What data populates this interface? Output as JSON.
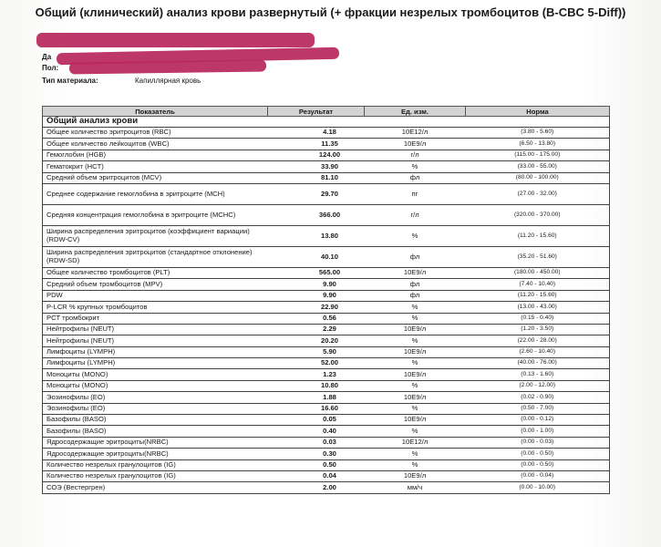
{
  "title": "Общий (клинический) анализ крови развернутый (+ фракции незрелых тромбоцитов (B-CBC 5-Diff))",
  "meta": [
    {
      "label": "Да",
      "value": ""
    },
    {
      "label": "Пол:",
      "value": ""
    },
    {
      "label": "Тип материала:",
      "value": "Капиллярная кровь"
    }
  ],
  "table": {
    "headers": {
      "indicator": "Показатель",
      "result": "Результат",
      "unit": "Ед. изм.",
      "norm": "Норма"
    },
    "section": "Общий анализ крови",
    "rows": [
      {
        "name": "Общее количество эритроцитов (RBC)",
        "result": "4.18",
        "unit": "10E12/л",
        "norm": "(3.80 - 5.60)"
      },
      {
        "name": "Общее количество лейкоцитов (WBC)",
        "result": "11.35",
        "unit": "10E9/л",
        "norm": "(6.50 - 13.80)"
      },
      {
        "name": "Гемоглобин (HGB)",
        "result": "124.00",
        "unit": "г/л",
        "norm": "(115.00 - 175.00)"
      },
      {
        "name": "Гематокрит (HCT)",
        "result": "33.90",
        "unit": "%",
        "norm": "(33.00 - 55.00)"
      },
      {
        "name": "Средний объем эритроцитов (MCV)",
        "result": "81.10",
        "unit": "фл",
        "norm": "(80.00 - 100.00)"
      },
      {
        "name": "Среднее содержание гемоглобина в эритроците (MCH)",
        "result": "29.70",
        "unit": "пг",
        "norm": "(27.00 - 32.00)"
      },
      {
        "name": "Средняя концентрация гемоглобина в эритроците (MCHC)",
        "result": "366.00",
        "unit": "г/л",
        "norm": "(320.00 - 370.00)"
      },
      {
        "name": "Ширина распределения эритроцитов (коэффициент вариации) (RDW-CV)",
        "result": "13.80",
        "unit": "%",
        "norm": "(11.20 - 15.60)"
      },
      {
        "name": "Ширина распределения эритроцитов (стандартное отклонение) (RDW-SD)",
        "result": "40.10",
        "unit": "фл",
        "norm": "(35.20 - 51.60)"
      },
      {
        "name": "Общее количество тромбоцитов (PLT)",
        "result": "565.00",
        "unit": "10E9/л",
        "norm": "(180.00 - 450.00)"
      },
      {
        "name": "Средний объем тромбоцитов (MPV)",
        "result": "9.90",
        "unit": "фл",
        "norm": "(7.40 - 10.40)"
      },
      {
        "name": "PDW",
        "result": "9.90",
        "unit": "фл",
        "norm": "(11.20 - 15.60)"
      },
      {
        "name": "P-LCR % крупных тромбоцитов",
        "result": "22.90",
        "unit": "%",
        "norm": "(13.00 - 43.00)"
      },
      {
        "name": "PCT тромбокрит",
        "result": "0.56",
        "unit": "%",
        "norm": "(0.15 - 0.40)"
      },
      {
        "name": "Нейтрофилы (NEUT)",
        "result": "2.29",
        "unit": "10E9/л",
        "norm": "(1.20 - 3.50)"
      },
      {
        "name": "Нейтрофилы (NEUT)",
        "result": "20.20",
        "unit": "%",
        "norm": "(22.00 - 28.00)"
      },
      {
        "name": "Лимфоциты (LYMPH)",
        "result": "5.90",
        "unit": "10E9/л",
        "norm": "(2.60 - 10.40)"
      },
      {
        "name": "Лимфоциты (LYMPH)",
        "result": "52.00",
        "unit": "%",
        "norm": "(40.00 - 76.00)"
      },
      {
        "name": "Моноциты (MONO)",
        "result": "1.23",
        "unit": "10E9/л",
        "norm": "(0.13 - 1.60)"
      },
      {
        "name": "Моноциты (MONO)",
        "result": "10.80",
        "unit": "%",
        "norm": "(2.00 - 12.00)"
      },
      {
        "name": "Эозинофилы (EO)",
        "result": "1.88",
        "unit": "10E9/л",
        "norm": "(0.02 - 0.90)"
      },
      {
        "name": "Эозинофилы (EO)",
        "result": "16.60",
        "unit": "%",
        "norm": "(0.50 - 7.00)"
      },
      {
        "name": "Базофилы (BASO)",
        "result": "0.05",
        "unit": "10E9/л",
        "norm": "(0.00 - 0.12)"
      },
      {
        "name": "Базофилы (BASO)",
        "result": "0.40",
        "unit": "%",
        "norm": "(0.00 - 1.00)"
      },
      {
        "name": "Ядросодержащие эритроциты(NRBC)",
        "result": "0.03",
        "unit": "10E12/л",
        "norm": "(0.00 - 0.03)"
      },
      {
        "name": "Ядросодержащие эритроциты(NRBC)",
        "result": "0.30",
        "unit": "%",
        "norm": "(0.00 - 0.50)"
      },
      {
        "name": "Количество незрелых гранулоцитов (IG)",
        "result": "0.50",
        "unit": "%",
        "norm": "(0.00 - 0.50)"
      },
      {
        "name": "Количество незрелых гранулоцитов (IG)",
        "result": "0.04",
        "unit": "10E9/л",
        "norm": "(0.00 - 0.04)"
      },
      {
        "name": "СОЭ (Вестергрен)",
        "result": "2.00",
        "unit": "мм/ч",
        "norm": "(0.00 - 10.00)"
      }
    ]
  }
}
